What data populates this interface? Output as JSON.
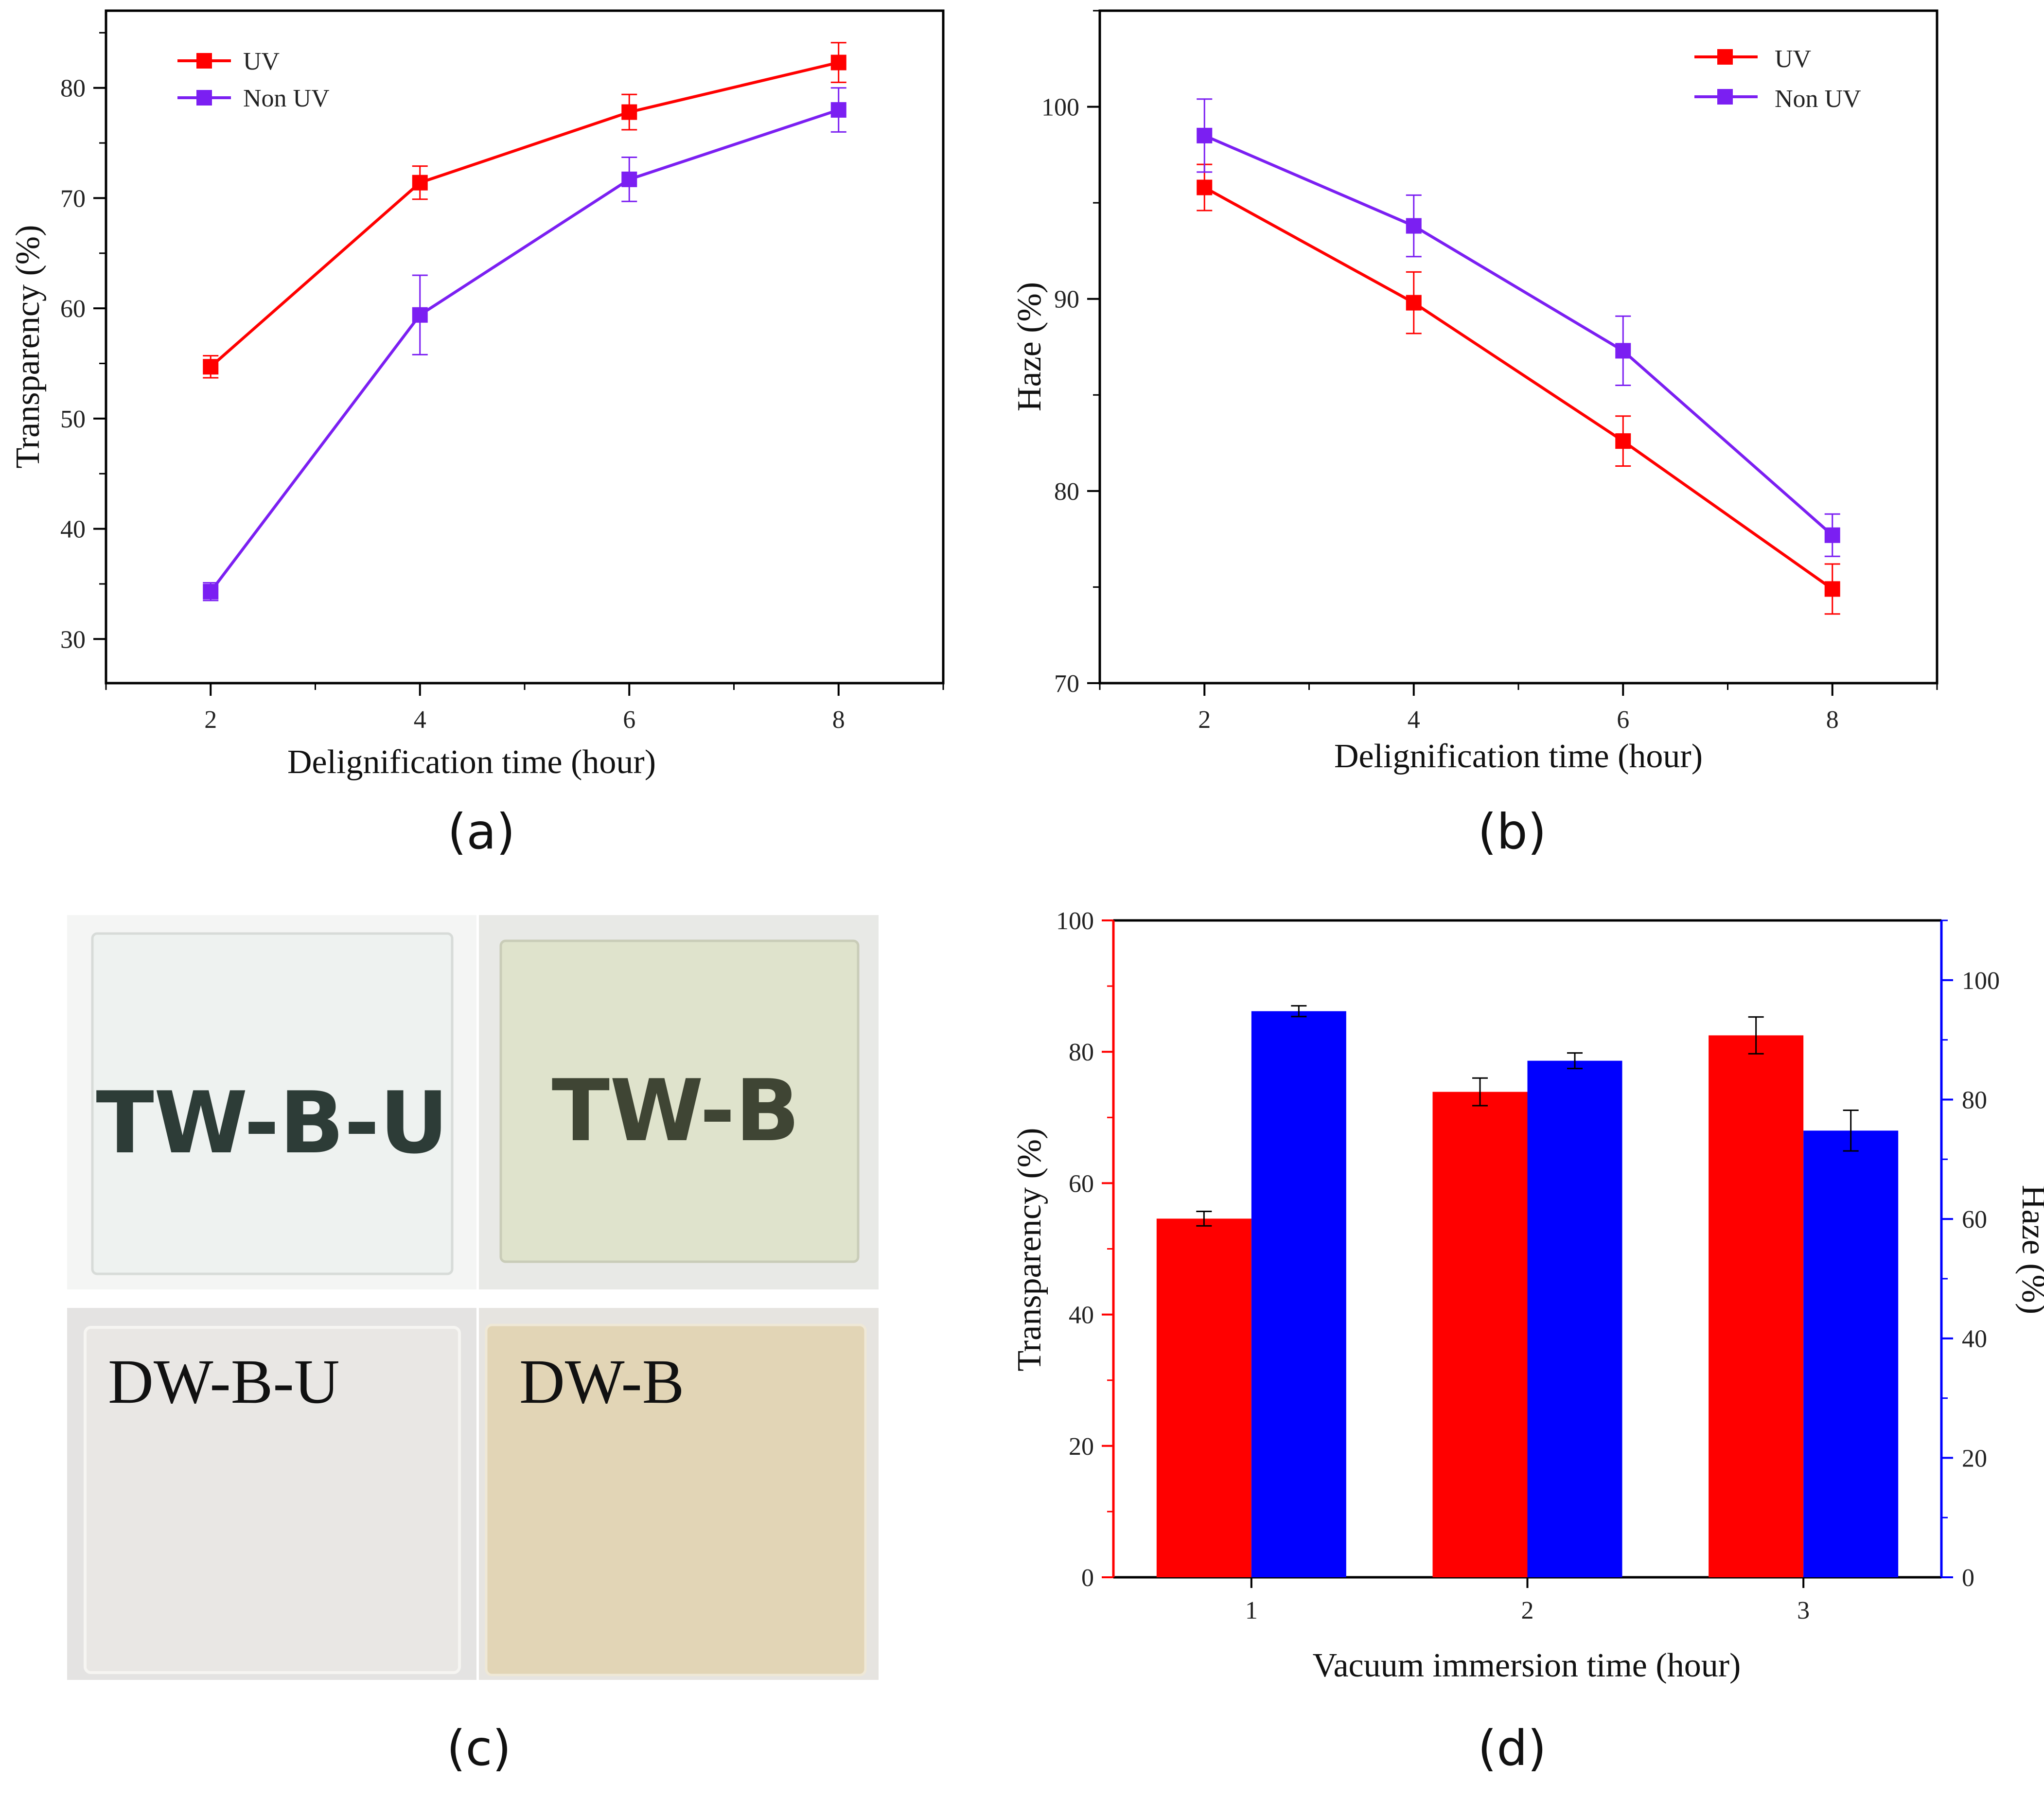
{
  "colors": {
    "uv": "#ff0000",
    "non_uv": "#7b1ff2",
    "transparency_bar": "#ff0000",
    "haze_bar": "#0000ff",
    "axis": "#000000"
  },
  "panels": {
    "a": {
      "label": "(a)"
    },
    "b": {
      "label": "(b)"
    },
    "c": {
      "label": "(c)",
      "samples": [
        {
          "name": "TW-B-U",
          "style": "bold",
          "fill": "#eef2f0",
          "text_color": "#1d2d28"
        },
        {
          "name": "TW-B",
          "style": "bold",
          "fill": "#dfe3cc",
          "text_color": "#2e3424"
        },
        {
          "name": "DW-B-U",
          "style": "serif",
          "fill": "#e9e7e4",
          "text_color": "#111111"
        },
        {
          "name": "DW-B",
          "style": "serif",
          "fill": "#e2d5b6",
          "text_color": "#111111"
        }
      ]
    },
    "d": {
      "label": "(d)"
    }
  },
  "chart_data": [
    {
      "id": "a",
      "type": "line",
      "title": "",
      "xlabel": "Delignification time (hour)",
      "ylabel": "Transparency (%)",
      "x": [
        2,
        4,
        6,
        8
      ],
      "xticks": [
        "2",
        "4",
        "6",
        "8"
      ],
      "yticks": [
        "30",
        "40",
        "50",
        "60",
        "70",
        "80"
      ],
      "xlim": [
        1,
        9
      ],
      "ylim": [
        26,
        87
      ],
      "legend_position": "top-left",
      "series": [
        {
          "name": "UV",
          "color": "#ff0000",
          "values": [
            54.7,
            71.4,
            77.8,
            82.3
          ],
          "errors": [
            1.0,
            1.5,
            1.6,
            1.8
          ]
        },
        {
          "name": "Non UV",
          "color": "#7b1ff2",
          "values": [
            34.3,
            59.4,
            71.7,
            78.0
          ],
          "errors": [
            0.8,
            3.6,
            2.0,
            2.0
          ]
        }
      ]
    },
    {
      "id": "b",
      "type": "line",
      "title": "",
      "xlabel": "Delignification time (hour)",
      "ylabel": "Haze (%)",
      "x": [
        2,
        4,
        6,
        8
      ],
      "xticks": [
        "2",
        "4",
        "6",
        "8"
      ],
      "yticks": [
        "70",
        "80",
        "90",
        "100"
      ],
      "xlim": [
        1,
        9
      ],
      "ylim": [
        70,
        105
      ],
      "legend_position": "top-right",
      "series": [
        {
          "name": "UV",
          "color": "#ff0000",
          "values": [
            95.8,
            89.8,
            82.6,
            74.9
          ],
          "errors": [
            1.2,
            1.6,
            1.3,
            1.3
          ]
        },
        {
          "name": "Non UV",
          "color": "#7b1ff2",
          "values": [
            98.5,
            93.8,
            87.3,
            77.7
          ],
          "errors": [
            1.9,
            1.6,
            1.8,
            1.1
          ]
        }
      ]
    },
    {
      "id": "d",
      "type": "bar",
      "title": "",
      "xlabel": "Vacuum immersion time (hour)",
      "ylabel_left": "Transparency (%)",
      "ylabel_right": "Haze (%)",
      "categories": [
        "1",
        "2",
        "3"
      ],
      "xlim": [
        0.5,
        3.5
      ],
      "ylim_left": [
        0,
        100
      ],
      "ylim_right": [
        0,
        110
      ],
      "yticks_left": [
        "0",
        "20",
        "40",
        "60",
        "80",
        "100"
      ],
      "yticks_right": [
        "0",
        "20",
        "40",
        "60",
        "80",
        "100"
      ],
      "series": [
        {
          "name": "Transparency",
          "axis": "left",
          "color": "#ff0000",
          "values": [
            54.6,
            73.9,
            82.5
          ],
          "errors": [
            1.1,
            2.1,
            2.8
          ]
        },
        {
          "name": "Haze",
          "axis": "right",
          "color": "#0000ff",
          "values": [
            94.8,
            86.5,
            74.8
          ],
          "errors": [
            0.9,
            1.3,
            3.4
          ]
        }
      ]
    }
  ]
}
